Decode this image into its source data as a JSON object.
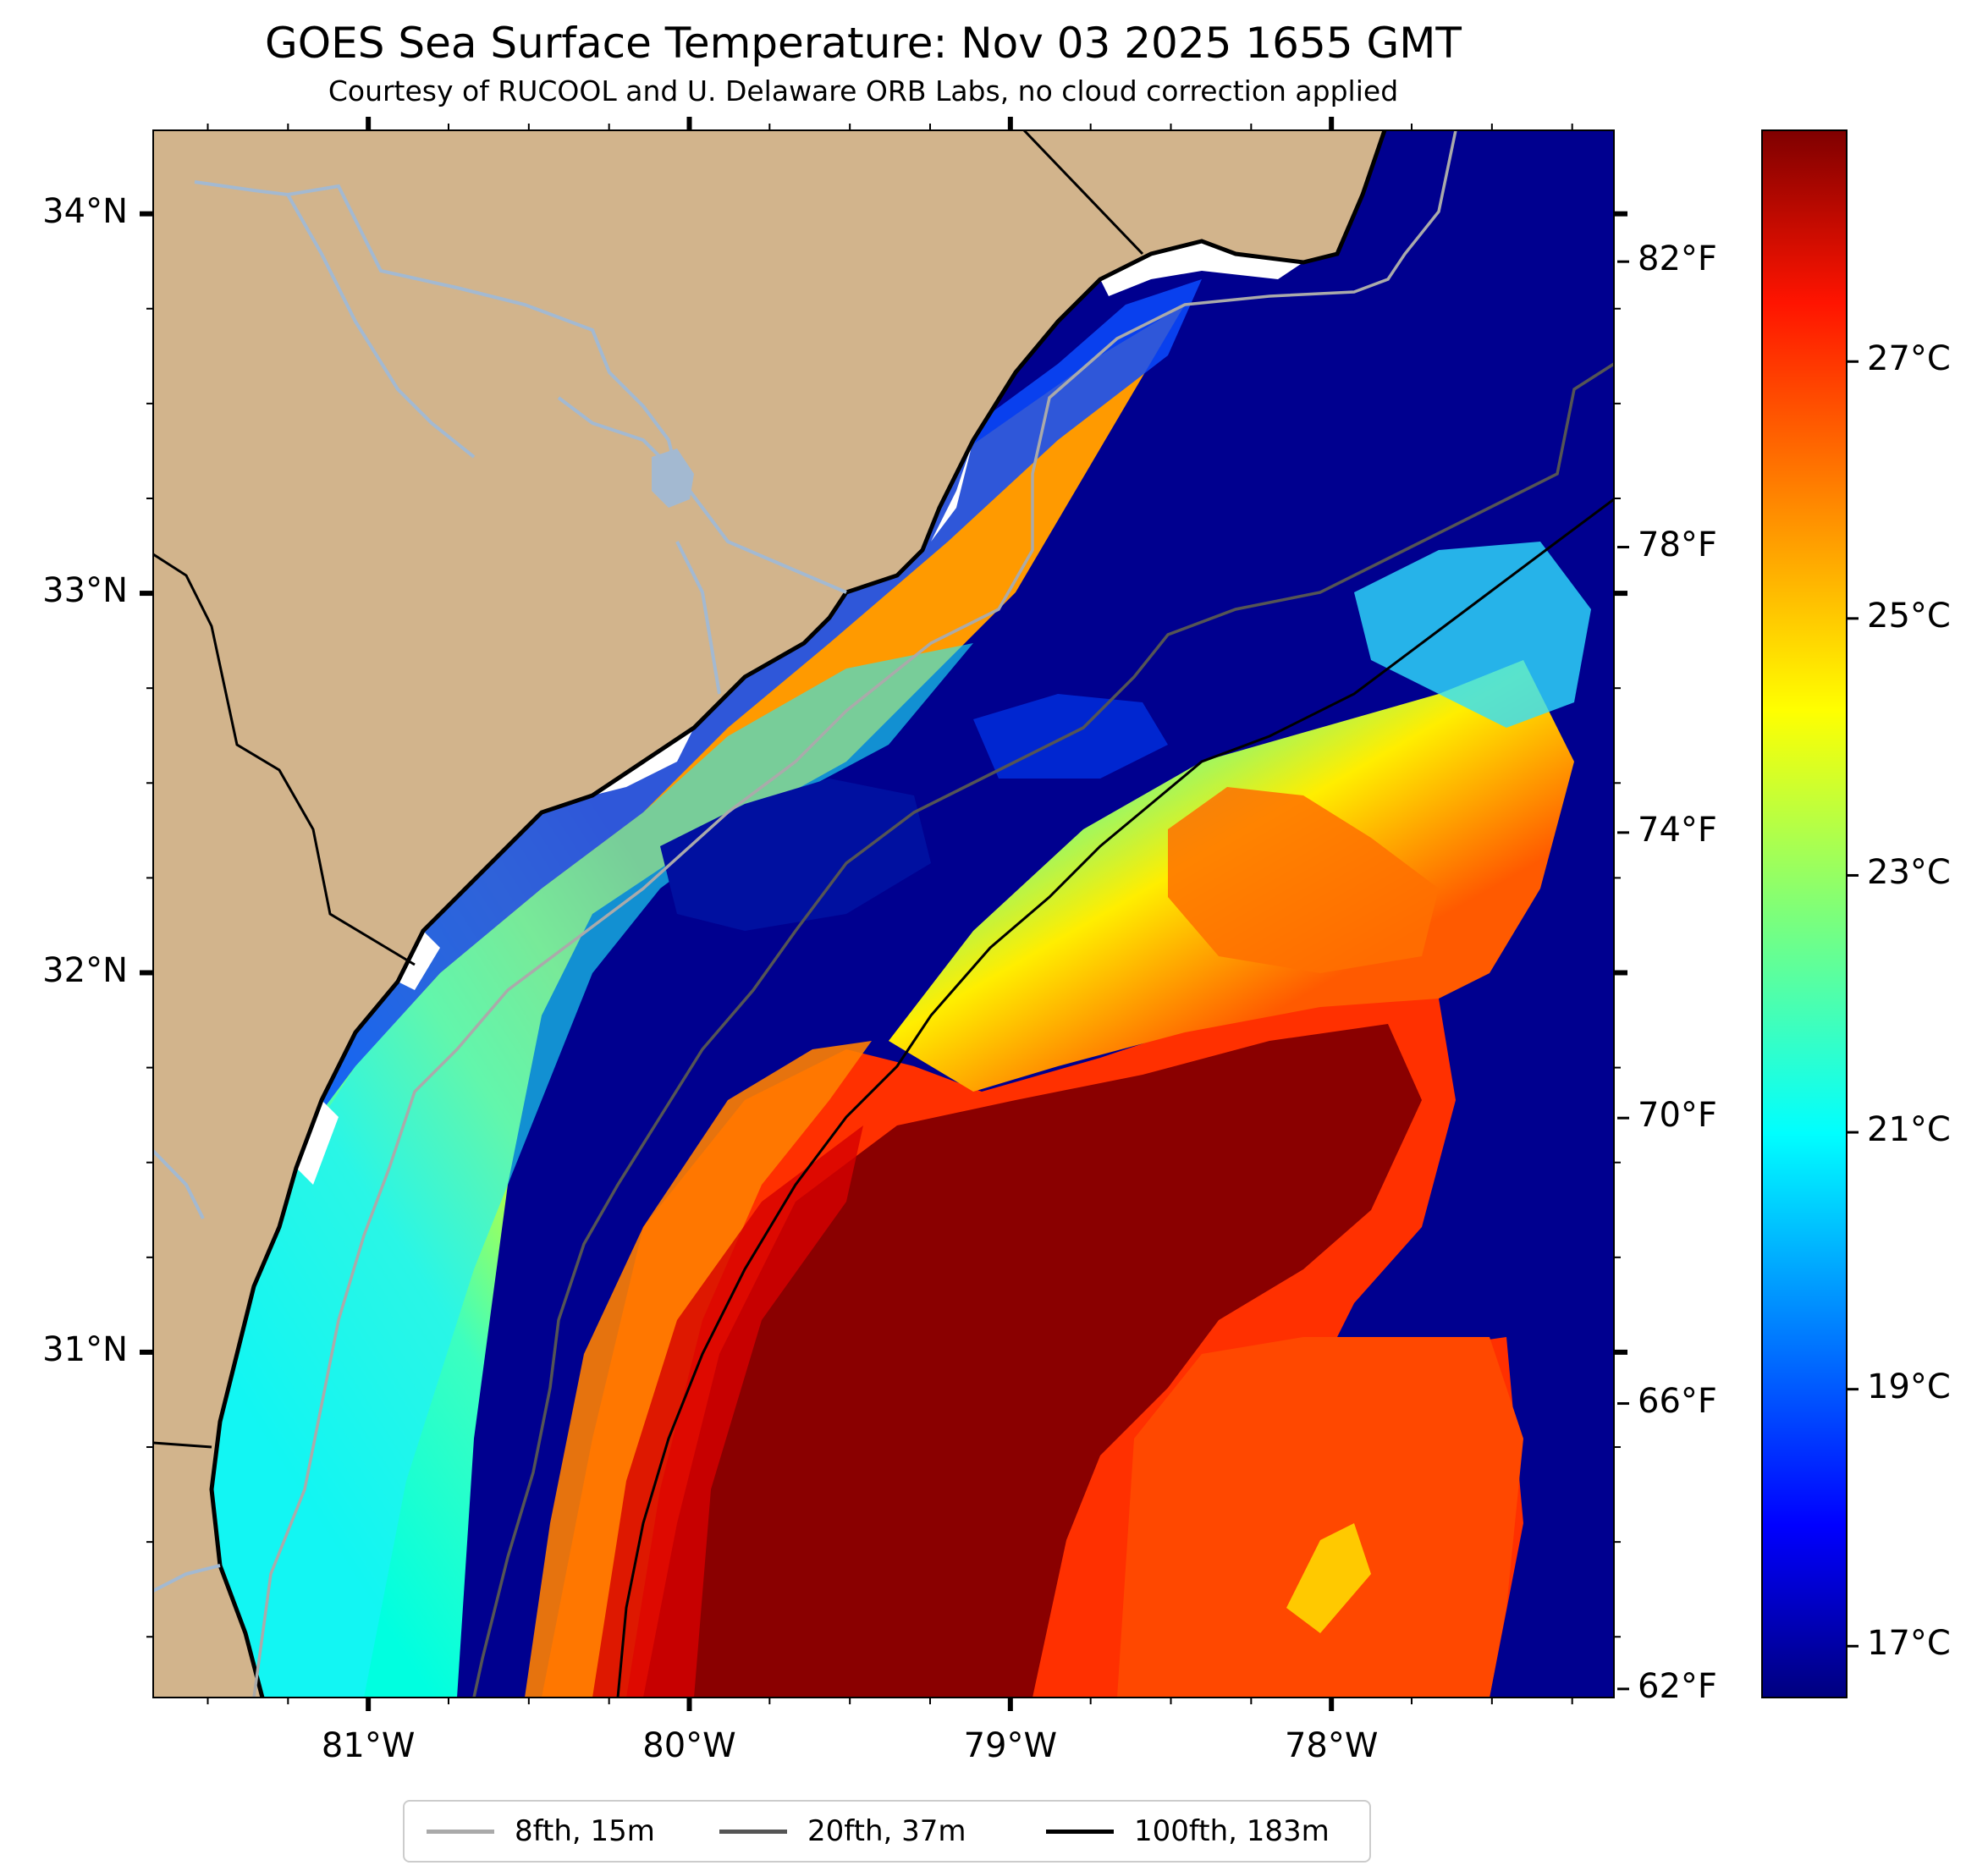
{
  "title": "GOES Sea Surface Temperature: Nov 03 2025 1655 GMT",
  "subtitle": "Courtesy of RUCOOL and U. Delaware ORB Labs, no cloud correction applied",
  "map": {
    "lon_range": [
      -81.67,
      -77.12
    ],
    "lat_range": [
      30.09,
      34.22
    ],
    "lat_ticks": [
      {
        "value": 34,
        "label": "34°N"
      },
      {
        "value": 33,
        "label": "33°N"
      },
      {
        "value": 32,
        "label": "32°N"
      },
      {
        "value": 31,
        "label": "31°N"
      }
    ],
    "lon_ticks": [
      {
        "value": -81,
        "label": "81°W"
      },
      {
        "value": -80,
        "label": "80°W"
      },
      {
        "value": -79,
        "label": "79°W"
      },
      {
        "value": -78,
        "label": "78°W"
      }
    ],
    "colors": {
      "land": "#d2b48c",
      "cold_water": "#00008f",
      "coast": "#000000",
      "river": "#a3b9d1",
      "no_data": "#ffffff"
    }
  },
  "colorbar": {
    "colormap": "jet",
    "celsius_range": [
      16.6,
      28.8
    ],
    "celsius_ticks": [
      {
        "value": 17,
        "label": "17°C"
      },
      {
        "value": 19,
        "label": "19°C"
      },
      {
        "value": 21,
        "label": "21°C"
      },
      {
        "value": 23,
        "label": "23°C"
      },
      {
        "value": 25,
        "label": "25°C"
      },
      {
        "value": 27,
        "label": "27°C"
      }
    ],
    "fahrenheit_ticks": [
      {
        "value": 62,
        "label": "62°F"
      },
      {
        "value": 66,
        "label": "66°F"
      },
      {
        "value": 70,
        "label": "70°F"
      },
      {
        "value": 74,
        "label": "74°F"
      },
      {
        "value": 78,
        "label": "78°F"
      },
      {
        "value": 82,
        "label": "82°F"
      }
    ]
  },
  "legend": {
    "items": [
      {
        "label": "8fth, 15m",
        "color": "#aaaaaa"
      },
      {
        "label": "20fth, 37m",
        "color": "#555555"
      },
      {
        "label": "100fth, 183m",
        "color": "#000000"
      }
    ]
  }
}
